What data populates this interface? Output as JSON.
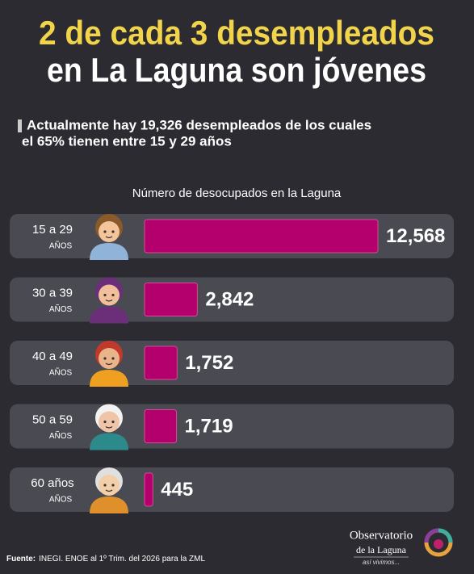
{
  "title_lines": [
    "2 de cada 3 desempleados",
    "en La Laguna son jóvenes"
  ],
  "subtitle_lines": [
    "Actualmente hay 19,326 desempleados de los cuales",
    "el 65% tienen entre 15 y 29 años"
  ],
  "chart_data": {
    "type": "bar",
    "orientation": "horizontal",
    "title": "Número de desocupados en la Laguna",
    "categories": [
      "15 a 29",
      "30 a 39",
      "40 a 49",
      "50 a 59",
      "60 años"
    ],
    "category_notes": [
      "AÑOS",
      "AÑOS",
      "AÑOS",
      "AÑOS",
      "AÑOS"
    ],
    "values": [
      12568,
      2842,
      1752,
      1719,
      445
    ],
    "value_labels": [
      "12,568",
      "2,842",
      "1,752",
      "1,719",
      "445"
    ],
    "color": "#b4006c"
  },
  "source": {
    "label": "Fuente:",
    "text": "INEGI. ENOE al 1º Trim. del 2026 para la ZML"
  },
  "logo": {
    "line1": "Observatorio",
    "line2": "de la Laguna",
    "tagline": "así vivimos..."
  }
}
